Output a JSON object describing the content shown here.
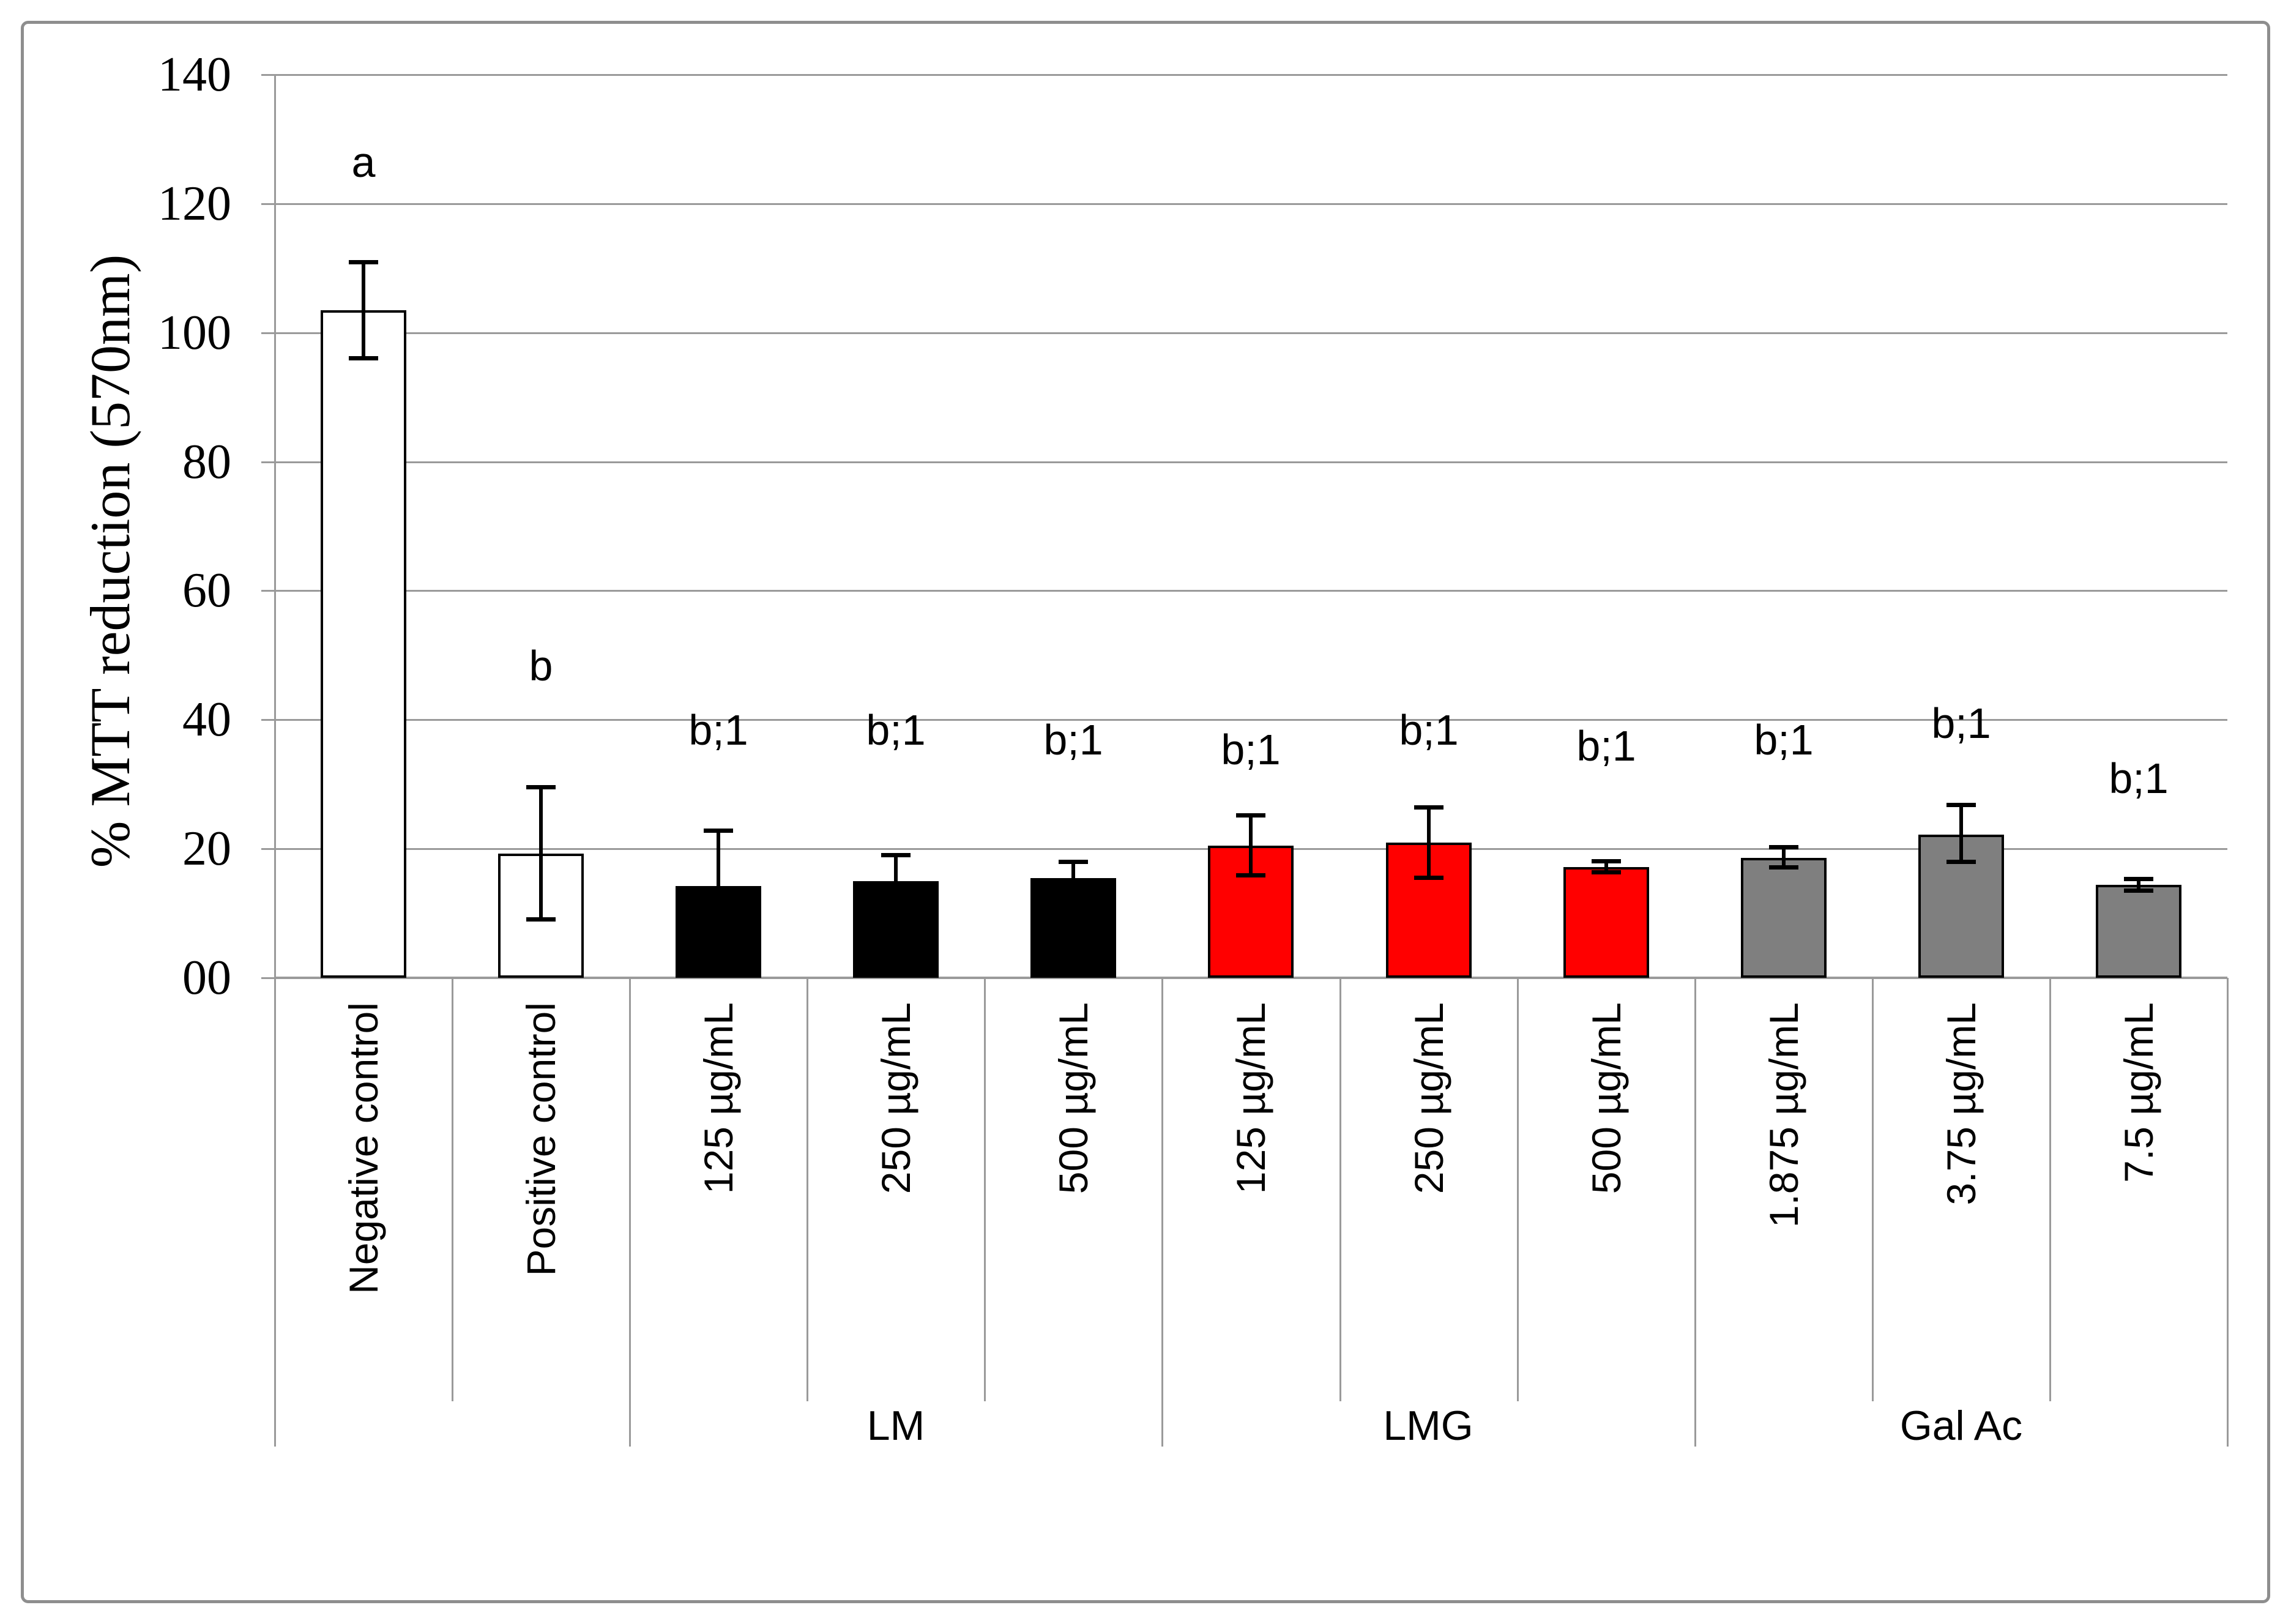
{
  "figure": {
    "background": "#ffffff",
    "frame_color": "#8e8e8e",
    "grid_color": "#9a9a9a",
    "text_color": "#000000"
  },
  "chart_data": {
    "type": "bar",
    "title": "",
    "xlabel": "",
    "ylabel": "% MTT reduction (570nm)",
    "ylim": [
      0,
      140
    ],
    "ytick_interval": 20,
    "grid": true,
    "legend": "none",
    "yticks": [
      {
        "value": 0,
        "label": "00"
      },
      {
        "value": 20,
        "label": "20"
      },
      {
        "value": 40,
        "label": "40"
      },
      {
        "value": 60,
        "label": "60"
      },
      {
        "value": 80,
        "label": "80"
      },
      {
        "value": 100,
        "label": "100"
      },
      {
        "value": 120,
        "label": "120"
      },
      {
        "value": 140,
        "label": "140"
      }
    ],
    "bars": [
      {
        "label": "Negative control",
        "group": "",
        "value": 103.5,
        "err_up": 7.5,
        "err_down": 7.5,
        "color": "#ffffff",
        "note": "a",
        "note_y": 123
      },
      {
        "label": "Positive control",
        "group": "",
        "value": 19.3,
        "err_up": 10.3,
        "err_down": 10.3,
        "color": "#ffffff",
        "note": "b",
        "note_y": 45
      },
      {
        "label": "125 µg/mL",
        "group": "LM",
        "value": 14.2,
        "err_up": 8.7,
        "err_down": 8.7,
        "color": "#000000",
        "note": "b;1",
        "note_y": 35
      },
      {
        "label": "250 µg/mL",
        "group": "LM",
        "value": 15.0,
        "err_up": 4.1,
        "err_down": 4.1,
        "color": "#000000",
        "note": "b;1",
        "note_y": 35
      },
      {
        "label": "500 µg/mL",
        "group": "LM",
        "value": 15.5,
        "err_up": 2.5,
        "err_down": 2.5,
        "color": "#000000",
        "note": "b;1",
        "note_y": 33.5
      },
      {
        "label": "125 µg/mL",
        "group": "LMG",
        "value": 20.5,
        "err_up": 4.7,
        "err_down": 4.7,
        "color": "#ff0000",
        "note": "b;1",
        "note_y": 32
      },
      {
        "label": "250 µg/mL",
        "group": "LMG",
        "value": 21.0,
        "err_up": 5.5,
        "err_down": 5.5,
        "color": "#ff0000",
        "note": "b;1",
        "note_y": 35
      },
      {
        "label": "500 µg/mL",
        "group": "LMG",
        "value": 17.2,
        "err_up": 0.9,
        "err_down": 0.9,
        "color": "#ff0000",
        "note": "b;1",
        "note_y": 32.5
      },
      {
        "label": "1.875 µg/mL",
        "group": "Gal Ac",
        "value": 18.6,
        "err_up": 1.7,
        "err_down": 1.5,
        "color": "#7f7f7f",
        "note": "b;1",
        "note_y": 33.5
      },
      {
        "label": "3.75 µg/mL",
        "group": "Gal Ac",
        "value": 22.2,
        "err_up": 4.6,
        "err_down": 4.3,
        "color": "#7f7f7f",
        "note": "b;1",
        "note_y": 36
      },
      {
        "label": "7.5 µg/mL",
        "group": "Gal Ac",
        "value": 14.4,
        "err_up": 1.0,
        "err_down": 0.9,
        "color": "#7f7f7f",
        "note": "b;1",
        "note_y": 27.5
      }
    ],
    "group_spans": [
      {
        "name": "LM",
        "start": 2,
        "end": 4
      },
      {
        "name": "LMG",
        "start": 5,
        "end": 7
      },
      {
        "name": "Gal Ac",
        "start": 8,
        "end": 10
      }
    ]
  }
}
